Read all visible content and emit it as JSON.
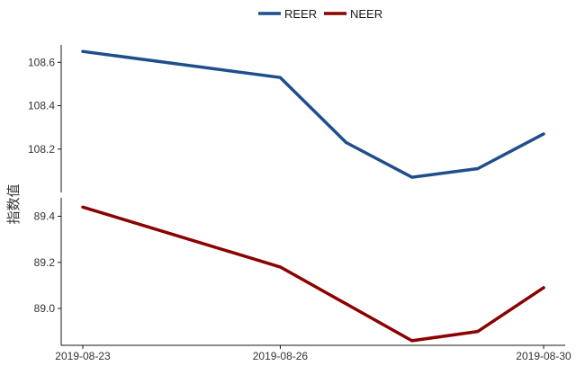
{
  "chart_data": {
    "type": "line",
    "layout": "two stacked panels sharing x axis (top: REER, bottom: NEER)",
    "legend": {
      "position": "top-center",
      "entries": [
        {
          "name": "REER",
          "color": "#1f4e8c"
        },
        {
          "name": "NEER",
          "color": "#8b0000"
        }
      ]
    },
    "ylabel": "指数值",
    "xlabel": "",
    "x": [
      "2019-08-23",
      "2019-08-26",
      "2019-08-27",
      "2019-08-28",
      "2019-08-29",
      "2019-08-30"
    ],
    "x_tick_labels": [
      "2019-08-23",
      "2019-08-26",
      "2019-08-30"
    ],
    "grid": false,
    "panels": [
      {
        "series": [
          {
            "name": "REER",
            "color": "#1f4e8c",
            "values": [
              108.65,
              108.53,
              108.23,
              108.07,
              108.11,
              108.27
            ]
          }
        ],
        "ylim": [
          108.0,
          108.68
        ],
        "yticks": [
          "108.2",
          "108.4",
          "108.6"
        ]
      },
      {
        "series": [
          {
            "name": "NEER",
            "color": "#8b0000",
            "values": [
              89.44,
              89.18,
              89.02,
              88.86,
              88.9,
              89.09
            ]
          }
        ],
        "ylim": [
          88.84,
          89.48
        ],
        "yticks": [
          "89.0",
          "89.2",
          "89.4"
        ]
      }
    ]
  }
}
